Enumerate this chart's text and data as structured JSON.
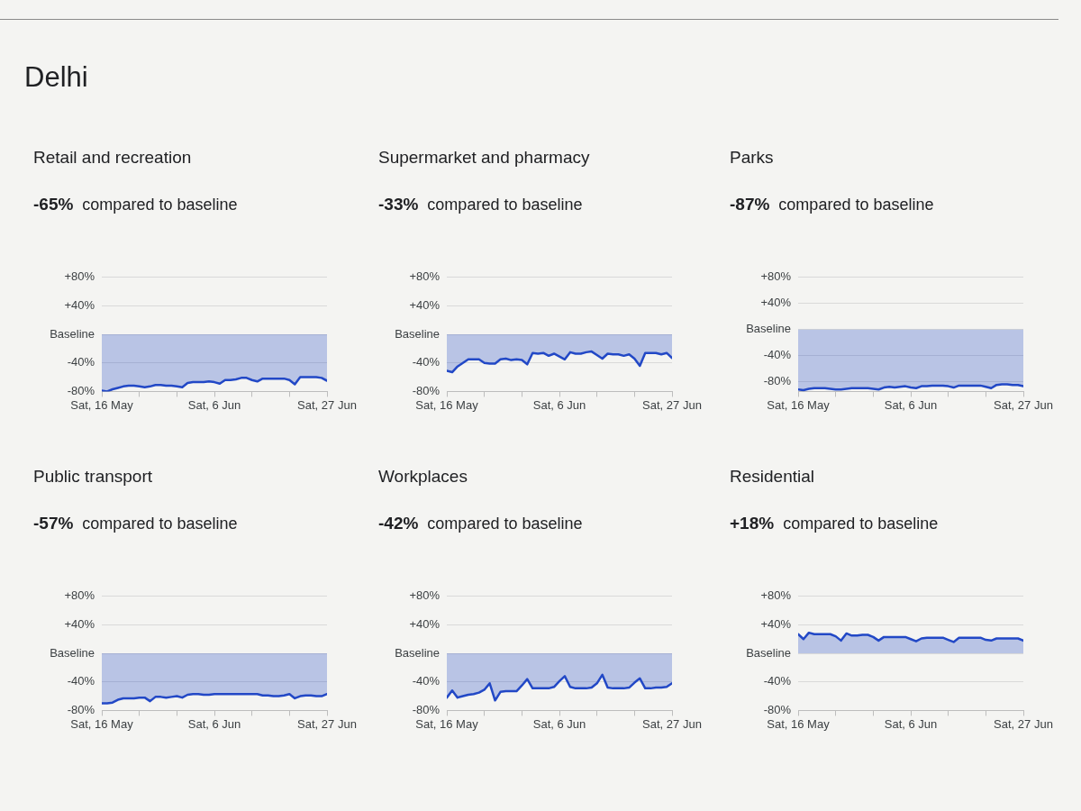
{
  "chart_data": [
    {
      "type": "area",
      "title": "Retail and recreation",
      "subtitle": "-65% compared to baseline",
      "annotations": [
        "Delhi"
      ],
      "x": [
        "--05-16",
        "--05-17",
        "--05-18",
        "--05-19",
        "--05-20",
        "--05-21",
        "--05-22",
        "--05-23",
        "--05-24",
        "--05-25",
        "--05-26",
        "--05-27",
        "--05-28",
        "--05-29",
        "--05-30",
        "--05-31",
        "--06-01",
        "--06-02",
        "--06-03",
        "--06-04",
        "--06-05",
        "--06-06",
        "--06-07",
        "--06-08",
        "--06-09",
        "--06-10",
        "--06-11",
        "--06-12",
        "--06-13",
        "--06-14",
        "--06-15",
        "--06-16",
        "--06-17",
        "--06-18",
        "--06-19",
        "--06-20",
        "--06-21",
        "--06-22",
        "--06-23",
        "--06-24",
        "--06-25",
        "--06-26",
        "--06-27"
      ],
      "series": [
        {
          "color": "#2248c6",
          "values": [
            -79,
            -80,
            -77,
            -75,
            -73,
            -72,
            -72,
            -73,
            -74,
            -73,
            -71,
            -71,
            -72,
            -72,
            -73,
            -74,
            -68,
            -67,
            -67,
            -67,
            -66,
            -67,
            -69,
            -64,
            -64,
            -63,
            -61,
            -61,
            -64,
            -66,
            -62,
            -62,
            -62,
            -62,
            -62,
            -64,
            -70,
            -60,
            -60,
            -60,
            -60,
            -61,
            -65
          ]
        }
      ],
      "xlim": [
        "--05-16",
        "--06-27"
      ],
      "xticks": [
        {
          "value": "--05-16",
          "label": "Sat, 16 May"
        },
        {
          "value": "--05-23",
          "label": null
        },
        {
          "value": "--05-30",
          "label": null
        },
        {
          "value": "--06-06",
          "label": "Sat, 6 Jun"
        },
        {
          "value": "--06-13",
          "label": null
        },
        {
          "value": "--06-20",
          "label": null
        },
        {
          "value": "--06-27",
          "label": "Sat, 27 Jun"
        }
      ],
      "ylim": [
        -80,
        80
      ],
      "yticks": [
        {
          "value": 80,
          "label": "+80%"
        },
        {
          "value": 40,
          "label": "+40%"
        },
        {
          "value": 0,
          "label": "Baseline"
        },
        {
          "value": -40,
          "label": "-40%"
        },
        {
          "value": -80,
          "label": "-80%"
        }
      ],
      "grid": "y",
      "marker": "none"
    },
    {
      "type": "area",
      "title": "Supermarket and pharmacy",
      "subtitle": "-33% compared to baseline",
      "x": [
        "--05-16",
        "--05-17",
        "--05-18",
        "--05-19",
        "--05-20",
        "--05-21",
        "--05-22",
        "--05-23",
        "--05-24",
        "--05-25",
        "--05-26",
        "--05-27",
        "--05-28",
        "--05-29",
        "--05-30",
        "--05-31",
        "--06-01",
        "--06-02",
        "--06-03",
        "--06-04",
        "--06-05",
        "--06-06",
        "--06-07",
        "--06-08",
        "--06-09",
        "--06-10",
        "--06-11",
        "--06-12",
        "--06-13",
        "--06-14",
        "--06-15",
        "--06-16",
        "--06-17",
        "--06-18",
        "--06-19",
        "--06-20",
        "--06-21",
        "--06-22",
        "--06-23",
        "--06-24",
        "--06-25",
        "--06-26",
        "--06-27"
      ],
      "series": [
        {
          "color": "#2248c6",
          "values": [
            -51,
            -53,
            -45,
            -40,
            -35,
            -35,
            -35,
            -40,
            -41,
            -41,
            -35,
            -34,
            -36,
            -35,
            -36,
            -42,
            -26,
            -27,
            -26,
            -30,
            -27,
            -31,
            -35,
            -25,
            -27,
            -27,
            -25,
            -24,
            -29,
            -34,
            -27,
            -28,
            -28,
            -30,
            -28,
            -34,
            -44,
            -26,
            -26,
            -26,
            -28,
            -26,
            -33
          ]
        }
      ],
      "xlim": [
        "--05-16",
        "--06-27"
      ],
      "xticks": [
        {
          "value": "--05-16",
          "label": "Sat, 16 May"
        },
        {
          "value": "--05-23",
          "label": null
        },
        {
          "value": "--05-30",
          "label": null
        },
        {
          "value": "--06-06",
          "label": "Sat, 6 Jun"
        },
        {
          "value": "--06-13",
          "label": null
        },
        {
          "value": "--06-20",
          "label": null
        },
        {
          "value": "--06-27",
          "label": "Sat, 27 Jun"
        }
      ],
      "ylim": [
        -80,
        80
      ],
      "yticks": [
        {
          "value": 80,
          "label": "+80%"
        },
        {
          "value": 40,
          "label": "+40%"
        },
        {
          "value": 0,
          "label": "Baseline"
        },
        {
          "value": -40,
          "label": "-40%"
        },
        {
          "value": -80,
          "label": "-80%"
        }
      ],
      "grid": "y",
      "marker": "none"
    },
    {
      "type": "area",
      "title": "Parks",
      "subtitle": "-87% compared to baseline",
      "x": [
        "--05-16",
        "--05-17",
        "--05-18",
        "--05-19",
        "--05-20",
        "--05-21",
        "--05-22",
        "--05-23",
        "--05-24",
        "--05-25",
        "--05-26",
        "--05-27",
        "--05-28",
        "--05-29",
        "--05-30",
        "--05-31",
        "--06-01",
        "--06-02",
        "--06-03",
        "--06-04",
        "--06-05",
        "--06-06",
        "--06-07",
        "--06-08",
        "--06-09",
        "--06-10",
        "--06-11",
        "--06-12",
        "--06-13",
        "--06-14",
        "--06-15",
        "--06-16",
        "--06-17",
        "--06-18",
        "--06-19",
        "--06-20",
        "--06-21",
        "--06-22",
        "--06-23",
        "--06-24",
        "--06-25",
        "--06-26",
        "--06-27"
      ],
      "series": [
        {
          "color": "#2248c6",
          "values": [
            -92,
            -93,
            -91,
            -90,
            -90,
            -90,
            -91,
            -92,
            -92,
            -91,
            -90,
            -90,
            -90,
            -90,
            -91,
            -92,
            -89,
            -88,
            -89,
            -88,
            -87,
            -89,
            -90,
            -87,
            -87,
            -86,
            -86,
            -86,
            -87,
            -89,
            -86,
            -86,
            -86,
            -86,
            -86,
            -88,
            -90,
            -85,
            -84,
            -84,
            -85,
            -85,
            -87
          ]
        }
      ],
      "xlim": [
        "--05-16",
        "--06-27"
      ],
      "xticks": [
        {
          "value": "--05-16",
          "label": "Sat, 16 May"
        },
        {
          "value": "--05-23",
          "label": null
        },
        {
          "value": "--05-30",
          "label": null
        },
        {
          "value": "--06-06",
          "label": "Sat, 6 Jun"
        },
        {
          "value": "--06-13",
          "label": null
        },
        {
          "value": "--06-20",
          "label": null
        },
        {
          "value": "--06-27",
          "label": "Sat, 27 Jun"
        }
      ],
      "ylim": [
        -95,
        80
      ],
      "yticks": [
        {
          "value": 80,
          "label": "+80%"
        },
        {
          "value": 40,
          "label": "+40%"
        },
        {
          "value": 0,
          "label": "Baseline"
        },
        {
          "value": -40,
          "label": "-40%"
        },
        {
          "value": -80,
          "label": "-80%"
        }
      ],
      "grid": "y",
      "marker": "none"
    },
    {
      "type": "area",
      "title": "Public transport",
      "subtitle": "-57% compared to baseline",
      "x": [
        "--05-16",
        "--05-17",
        "--05-18",
        "--05-19",
        "--05-20",
        "--05-21",
        "--05-22",
        "--05-23",
        "--05-24",
        "--05-25",
        "--05-26",
        "--05-27",
        "--05-28",
        "--05-29",
        "--05-30",
        "--05-31",
        "--06-01",
        "--06-02",
        "--06-03",
        "--06-04",
        "--06-05",
        "--06-06",
        "--06-07",
        "--06-08",
        "--06-09",
        "--06-10",
        "--06-11",
        "--06-12",
        "--06-13",
        "--06-14",
        "--06-15",
        "--06-16",
        "--06-17",
        "--06-18",
        "--06-19",
        "--06-20",
        "--06-21",
        "--06-22",
        "--06-23",
        "--06-24",
        "--06-25",
        "--06-26",
        "--06-27"
      ],
      "series": [
        {
          "color": "#2248c6",
          "values": [
            -70,
            -70,
            -69,
            -65,
            -63,
            -63,
            -63,
            -62,
            -62,
            -67,
            -61,
            -61,
            -62,
            -61,
            -60,
            -62,
            -58,
            -57,
            -57,
            -58,
            -58,
            -57,
            -57,
            -57,
            -57,
            -57,
            -57,
            -57,
            -57,
            -57,
            -59,
            -59,
            -60,
            -60,
            -59,
            -57,
            -63,
            -60,
            -59,
            -59,
            -60,
            -60,
            -57
          ]
        }
      ],
      "xlim": [
        "--05-16",
        "--06-27"
      ],
      "xticks": [
        {
          "value": "--05-16",
          "label": "Sat, 16 May"
        },
        {
          "value": "--05-23",
          "label": null
        },
        {
          "value": "--05-30",
          "label": null
        },
        {
          "value": "--06-06",
          "label": "Sat, 6 Jun"
        },
        {
          "value": "--06-13",
          "label": null
        },
        {
          "value": "--06-20",
          "label": null
        },
        {
          "value": "--06-27",
          "label": "Sat, 27 Jun"
        }
      ],
      "ylim": [
        -80,
        80
      ],
      "yticks": [
        {
          "value": 80,
          "label": "+80%"
        },
        {
          "value": 40,
          "label": "+40%"
        },
        {
          "value": 0,
          "label": "Baseline"
        },
        {
          "value": -40,
          "label": "-40%"
        },
        {
          "value": -80,
          "label": "-80%"
        }
      ],
      "grid": "y",
      "marker": "none"
    },
    {
      "type": "area",
      "title": "Workplaces",
      "subtitle": "-42% compared to baseline",
      "x": [
        "--05-16",
        "--05-17",
        "--05-18",
        "--05-19",
        "--05-20",
        "--05-21",
        "--05-22",
        "--05-23",
        "--05-24",
        "--05-25",
        "--05-26",
        "--05-27",
        "--05-28",
        "--05-29",
        "--05-30",
        "--05-31",
        "--06-01",
        "--06-02",
        "--06-03",
        "--06-04",
        "--06-05",
        "--06-06",
        "--06-07",
        "--06-08",
        "--06-09",
        "--06-10",
        "--06-11",
        "--06-12",
        "--06-13",
        "--06-14",
        "--06-15",
        "--06-16",
        "--06-17",
        "--06-18",
        "--06-19",
        "--06-20",
        "--06-21",
        "--06-22",
        "--06-23",
        "--06-24",
        "--06-25",
        "--06-26",
        "--06-27"
      ],
      "series": [
        {
          "color": "#2248c6",
          "values": [
            -62,
            -52,
            -62,
            -60,
            -58,
            -57,
            -55,
            -51,
            -42,
            -66,
            -54,
            -53,
            -53,
            -53,
            -45,
            -36,
            -49,
            -49,
            -49,
            -49,
            -47,
            -39,
            -32,
            -47,
            -49,
            -49,
            -49,
            -48,
            -42,
            -30,
            -48,
            -49,
            -49,
            -49,
            -48,
            -41,
            -35,
            -49,
            -49,
            -48,
            -48,
            -47,
            -42
          ]
        }
      ],
      "xlim": [
        "--05-16",
        "--06-27"
      ],
      "xticks": [
        {
          "value": "--05-16",
          "label": "Sat, 16 May"
        },
        {
          "value": "--05-23",
          "label": null
        },
        {
          "value": "--05-30",
          "label": null
        },
        {
          "value": "--06-06",
          "label": "Sat, 6 Jun"
        },
        {
          "value": "--06-13",
          "label": null
        },
        {
          "value": "--06-20",
          "label": null
        },
        {
          "value": "--06-27",
          "label": "Sat, 27 Jun"
        }
      ],
      "ylim": [
        -80,
        80
      ],
      "yticks": [
        {
          "value": 80,
          "label": "+80%"
        },
        {
          "value": 40,
          "label": "+40%"
        },
        {
          "value": 0,
          "label": "Baseline"
        },
        {
          "value": -40,
          "label": "-40%"
        },
        {
          "value": -80,
          "label": "-80%"
        }
      ],
      "grid": "y",
      "marker": "none"
    },
    {
      "type": "area",
      "title": "Residential",
      "subtitle": "+18% compared to baseline",
      "x": [
        "--05-16",
        "--05-17",
        "--05-18",
        "--05-19",
        "--05-20",
        "--05-21",
        "--05-22",
        "--05-23",
        "--05-24",
        "--05-25",
        "--05-26",
        "--05-27",
        "--05-28",
        "--05-29",
        "--05-30",
        "--05-31",
        "--06-01",
        "--06-02",
        "--06-03",
        "--06-04",
        "--06-05",
        "--06-06",
        "--06-07",
        "--06-08",
        "--06-09",
        "--06-10",
        "--06-11",
        "--06-12",
        "--06-13",
        "--06-14",
        "--06-15",
        "--06-16",
        "--06-17",
        "--06-18",
        "--06-19",
        "--06-20",
        "--06-21",
        "--06-22",
        "--06-23",
        "--06-24",
        "--06-25",
        "--06-26",
        "--06-27"
      ],
      "series": [
        {
          "color": "#2248c6",
          "values": [
            27,
            20,
            29,
            27,
            27,
            27,
            27,
            24,
            18,
            28,
            25,
            25,
            26,
            26,
            23,
            18,
            23,
            23,
            23,
            23,
            23,
            20,
            17,
            21,
            22,
            22,
            22,
            22,
            19,
            16,
            22,
            22,
            22,
            22,
            22,
            19,
            18,
            21,
            21,
            21,
            21,
            21,
            18
          ]
        }
      ],
      "xlim": [
        "--05-16",
        "--06-27"
      ],
      "xticks": [
        {
          "value": "--05-16",
          "label": "Sat, 16 May"
        },
        {
          "value": "--05-23",
          "label": null
        },
        {
          "value": "--05-30",
          "label": null
        },
        {
          "value": "--06-06",
          "label": "Sat, 6 Jun"
        },
        {
          "value": "--06-13",
          "label": null
        },
        {
          "value": "--06-20",
          "label": null
        },
        {
          "value": "--06-27",
          "label": "Sat, 27 Jun"
        }
      ],
      "ylim": [
        -80,
        80
      ],
      "yticks": [
        {
          "value": 80,
          "label": "+80%"
        },
        {
          "value": 40,
          "label": "+40%"
        },
        {
          "value": 0,
          "label": "Baseline"
        },
        {
          "value": -40,
          "label": "-40%"
        },
        {
          "value": -80,
          "label": "-80%"
        }
      ],
      "grid": "y",
      "marker": "none"
    }
  ]
}
